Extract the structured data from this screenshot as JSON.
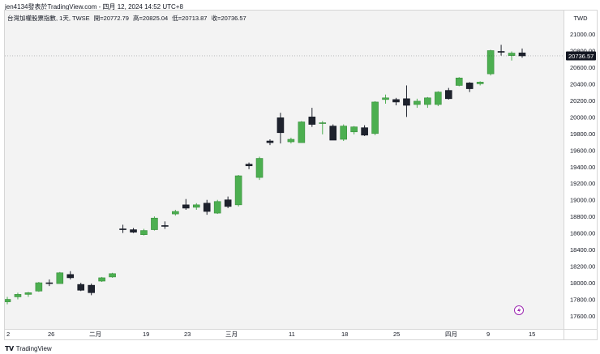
{
  "header": {
    "text": "jen4134發表於TradingView.com - 四月 12, 2024 14:52 UTC+8"
  },
  "legend": {
    "symbol": "台灣加權股票指數, 1天, TWSE",
    "open": "開=20772.79",
    "high": "高=20825.04",
    "low": "低=20713.87",
    "close": "收=20736.57"
  },
  "currency": "TWD",
  "footer": {
    "brand": "TradingView"
  },
  "colors": {
    "up": "#4caf50",
    "down": "#1e222d",
    "background": "#f3f3f3",
    "lastPrice": "#131722"
  },
  "chart_data": {
    "type": "candlestick",
    "y_axis": {
      "ticks": [
        "17600.00",
        "17800.00",
        "18000.00",
        "18200.00",
        "18400.00",
        "18600.00",
        "18800.00",
        "19000.00",
        "19200.00",
        "19400.00",
        "19600.00",
        "19800.00",
        "20000.00",
        "20200.00",
        "20400.00",
        "20600.00",
        "20800.00",
        "21000.00"
      ],
      "ylim": [
        17400,
        21200
      ],
      "position": "right"
    },
    "x_axis": {
      "tick_labels": [
        "2",
        "26",
        "二月",
        "19",
        "23",
        "三月",
        "11",
        "18",
        "25",
        "四月",
        "9",
        "15"
      ]
    },
    "last_price_label": "20736.57",
    "candles": [
      {
        "o": 17770,
        "h": 17830,
        "l": 17740,
        "c": 17800
      },
      {
        "o": 17830,
        "h": 17880,
        "l": 17800,
        "c": 17860
      },
      {
        "o": 17860,
        "h": 17890,
        "l": 17830,
        "c": 17880
      },
      {
        "o": 17900,
        "h": 18010,
        "l": 17890,
        "c": 18000
      },
      {
        "o": 18000,
        "h": 18040,
        "l": 17960,
        "c": 17990
      },
      {
        "o": 17990,
        "h": 18130,
        "l": 17990,
        "c": 18120
      },
      {
        "o": 18100,
        "h": 18140,
        "l": 18040,
        "c": 18060
      },
      {
        "o": 17980,
        "h": 18000,
        "l": 17900,
        "c": 17910
      },
      {
        "o": 17970,
        "h": 17990,
        "l": 17850,
        "c": 17880
      },
      {
        "o": 18020,
        "h": 18070,
        "l": 18010,
        "c": 18060
      },
      {
        "o": 18070,
        "h": 18120,
        "l": 18060,
        "c": 18110
      },
      {
        "o": 18650,
        "h": 18700,
        "l": 18600,
        "c": 18640
      },
      {
        "o": 18640,
        "h": 18660,
        "l": 18600,
        "c": 18610
      },
      {
        "o": 18580,
        "h": 18650,
        "l": 18570,
        "c": 18630
      },
      {
        "o": 18640,
        "h": 18800,
        "l": 18630,
        "c": 18780
      },
      {
        "o": 18690,
        "h": 18740,
        "l": 18650,
        "c": 18680
      },
      {
        "o": 18830,
        "h": 18880,
        "l": 18810,
        "c": 18860
      },
      {
        "o": 18940,
        "h": 19010,
        "l": 18880,
        "c": 18900
      },
      {
        "o": 18910,
        "h": 18960,
        "l": 18880,
        "c": 18940
      },
      {
        "o": 18960,
        "h": 19000,
        "l": 18820,
        "c": 18860
      },
      {
        "o": 18840,
        "h": 19000,
        "l": 18830,
        "c": 18980
      },
      {
        "o": 19000,
        "h": 19040,
        "l": 18900,
        "c": 18920
      },
      {
        "o": 18940,
        "h": 19300,
        "l": 18920,
        "c": 19290
      },
      {
        "o": 19430,
        "h": 19450,
        "l": 19370,
        "c": 19410
      },
      {
        "o": 19270,
        "h": 19520,
        "l": 19240,
        "c": 19500
      },
      {
        "o": 19710,
        "h": 19730,
        "l": 19660,
        "c": 19690
      },
      {
        "o": 19990,
        "h": 20050,
        "l": 19680,
        "c": 19810
      },
      {
        "o": 19700,
        "h": 19750,
        "l": 19680,
        "c": 19730
      },
      {
        "o": 19690,
        "h": 19950,
        "l": 19690,
        "c": 19940
      },
      {
        "o": 20000,
        "h": 20110,
        "l": 19880,
        "c": 19910
      },
      {
        "o": 19920,
        "h": 19950,
        "l": 19790,
        "c": 19930
      },
      {
        "o": 19890,
        "h": 19910,
        "l": 19720,
        "c": 19720
      },
      {
        "o": 19730,
        "h": 19910,
        "l": 19710,
        "c": 19890
      },
      {
        "o": 19820,
        "h": 19890,
        "l": 19790,
        "c": 19880
      },
      {
        "o": 19870,
        "h": 19900,
        "l": 19770,
        "c": 19780
      },
      {
        "o": 19800,
        "h": 20190,
        "l": 19780,
        "c": 20180
      },
      {
        "o": 20210,
        "h": 20270,
        "l": 20160,
        "c": 20230
      },
      {
        "o": 20210,
        "h": 20230,
        "l": 20140,
        "c": 20180
      },
      {
        "o": 20220,
        "h": 20380,
        "l": 20000,
        "c": 20140
      },
      {
        "o": 20150,
        "h": 20220,
        "l": 20110,
        "c": 20190
      },
      {
        "o": 20150,
        "h": 20240,
        "l": 20110,
        "c": 20230
      },
      {
        "o": 20150,
        "h": 20310,
        "l": 20130,
        "c": 20300
      },
      {
        "o": 20320,
        "h": 20350,
        "l": 20210,
        "c": 20220
      },
      {
        "o": 20380,
        "h": 20480,
        "l": 20370,
        "c": 20470
      },
      {
        "o": 20410,
        "h": 20420,
        "l": 20300,
        "c": 20340
      },
      {
        "o": 20400,
        "h": 20430,
        "l": 20380,
        "c": 20420
      },
      {
        "o": 20520,
        "h": 20810,
        "l": 20500,
        "c": 20800
      },
      {
        "o": 20790,
        "h": 20870,
        "l": 20740,
        "c": 20780
      },
      {
        "o": 20740,
        "h": 20790,
        "l": 20680,
        "c": 20770
      },
      {
        "o": 20772.79,
        "h": 20825.04,
        "l": 20713.87,
        "c": 20736.57
      }
    ]
  }
}
